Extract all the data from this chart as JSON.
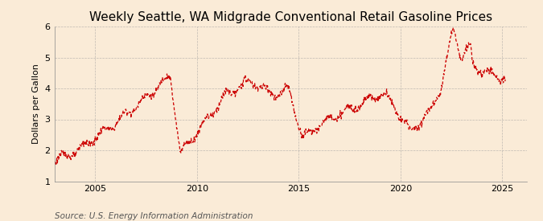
{
  "title": "Weekly Seattle, WA Midgrade Conventional Retail Gasoline Prices",
  "ylabel": "Dollars per Gallon",
  "source": "Source: U.S. Energy Information Administration",
  "line_color": "#cc0000",
  "background_color": "#faebd7",
  "plot_bg_color": "#faebd7",
  "grid_color": "#999999",
  "ylim": [
    1,
    6
  ],
  "yticks": [
    1,
    2,
    3,
    4,
    5,
    6
  ],
  "xlim_start": 2003.0,
  "xlim_end": 2026.2,
  "xticks": [
    2005,
    2010,
    2015,
    2020,
    2025
  ],
  "title_fontsize": 11,
  "label_fontsize": 8,
  "tick_fontsize": 8,
  "source_fontsize": 7.5
}
